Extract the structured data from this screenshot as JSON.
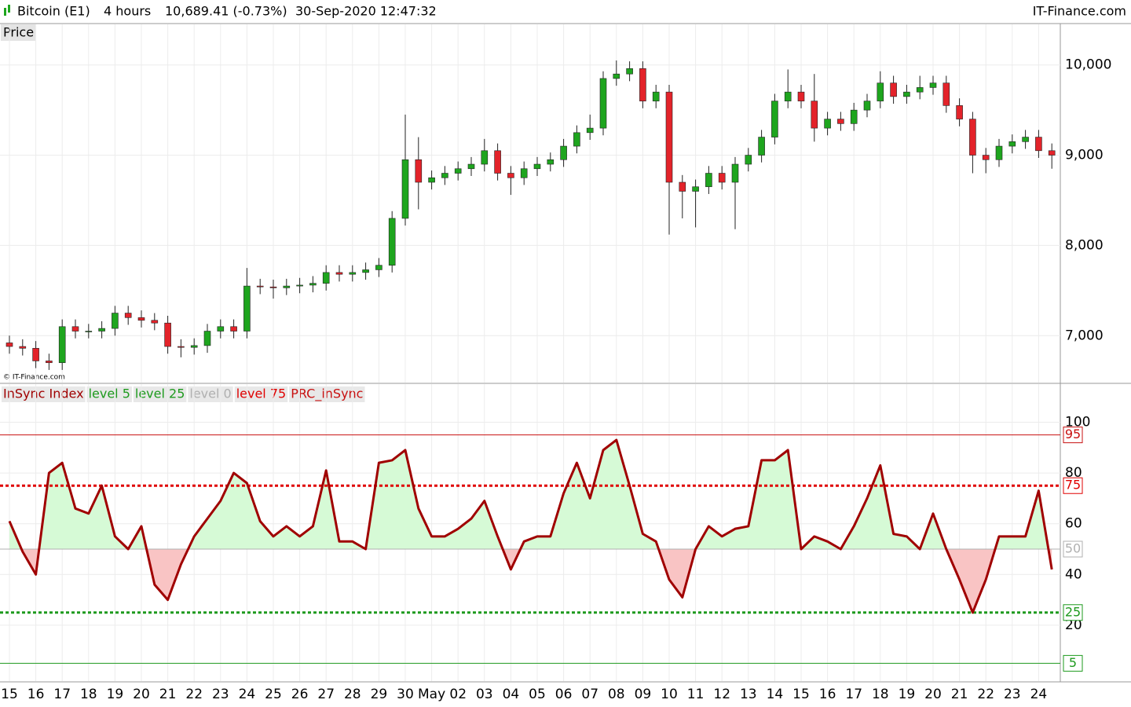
{
  "header": {
    "instrument": "Bitcoin (E1)",
    "timeframe": "4 hours",
    "quote": "10,689.41 (-0.73%)",
    "datetime": "30-Sep-2020 12:47:32",
    "brand": "IT-Finance.com"
  },
  "chart_data": [
    {
      "type": "candlestick",
      "title": "Price",
      "credit": "© IT-Finance.com",
      "up_color": "#1ea51e",
      "down_color": "#e3232a",
      "grid": true,
      "ylim": [
        6480,
        10450
      ],
      "yticks": [
        {
          "value": 7000,
          "label": "7,000"
        },
        {
          "value": 8000,
          "label": "8,000"
        },
        {
          "value": 9000,
          "label": "9,000"
        },
        {
          "value": 10000,
          "label": "10,000"
        }
      ],
      "open": [
        6920,
        6880,
        6860,
        6720,
        6700,
        7100,
        7050,
        7050,
        7080,
        7250,
        7200,
        7170,
        7140,
        6880,
        6870,
        6890,
        7050,
        7100,
        7050,
        7550,
        7540,
        7530,
        7550,
        7560,
        7580,
        7700,
        7680,
        7700,
        7730,
        7780,
        8300,
        8950,
        8700,
        8750,
        8800,
        8850,
        8900,
        9050,
        8800,
        8750,
        8850,
        8900,
        8950,
        9100,
        9250,
        9300,
        9850,
        9900,
        9960,
        9600,
        9700,
        8700,
        8600,
        8650,
        8800,
        8700,
        8900,
        9000,
        9200,
        9600,
        9700,
        9600,
        9300,
        9400,
        9350,
        9500,
        9600,
        9800,
        9650,
        9700,
        9750,
        9800,
        9550,
        9400,
        9000,
        8950,
        9100,
        9150,
        9200,
        9050
      ],
      "high": [
        7000,
        6960,
        6940,
        6800,
        7180,
        7180,
        7130,
        7160,
        7330,
        7330,
        7280,
        7250,
        7220,
        6960,
        6970,
        7130,
        7180,
        7180,
        7750,
        7630,
        7620,
        7630,
        7640,
        7660,
        7780,
        7780,
        7780,
        7810,
        7860,
        8380,
        9450,
        9200,
        8830,
        8880,
        8930,
        8980,
        9180,
        9130,
        8880,
        8930,
        8980,
        9030,
        9180,
        9330,
        9450,
        9930,
        10050,
        10040,
        10040,
        9780,
        9780,
        8780,
        8730,
        8880,
        8880,
        8980,
        9080,
        9280,
        9680,
        9950,
        9780,
        9900,
        9480,
        9480,
        9580,
        9680,
        9930,
        9880,
        9780,
        9880,
        9880,
        9880,
        9630,
        9480,
        9080,
        9180,
        9230,
        9280,
        9280,
        9130
      ],
      "low": [
        6800,
        6780,
        6640,
        6620,
        6620,
        6970,
        6970,
        6970,
        7000,
        7120,
        7090,
        7060,
        6800,
        6760,
        6790,
        6810,
        6970,
        6970,
        6970,
        7460,
        7410,
        7450,
        7470,
        7480,
        7500,
        7600,
        7600,
        7620,
        7650,
        7700,
        8220,
        8400,
        8620,
        8670,
        8720,
        8770,
        8820,
        8720,
        8560,
        8670,
        8770,
        8820,
        8870,
        9020,
        9170,
        9220,
        9770,
        9820,
        9520,
        9520,
        8120,
        8300,
        8200,
        8570,
        8620,
        8180,
        8820,
        8920,
        9120,
        9520,
        9520,
        9150,
        9220,
        9270,
        9270,
        9420,
        9520,
        9570,
        9570,
        9620,
        9670,
        9470,
        9320,
        8800,
        8800,
        8870,
        9020,
        9070,
        8970,
        8850
      ],
      "close": [
        6880,
        6860,
        6720,
        6700,
        7100,
        7050,
        7050,
        7080,
        7250,
        7200,
        7170,
        7140,
        6880,
        6870,
        6890,
        7050,
        7100,
        7050,
        7550,
        7540,
        7530,
        7550,
        7560,
        7580,
        7700,
        7680,
        7700,
        7730,
        7780,
        8300,
        8950,
        8700,
        8750,
        8800,
        8850,
        8900,
        9050,
        8800,
        8750,
        8850,
        8900,
        8950,
        9100,
        9250,
        9300,
        9850,
        9900,
        9960,
        9600,
        9700,
        8700,
        8600,
        8650,
        8800,
        8700,
        8900,
        9000,
        9200,
        9600,
        9700,
        9600,
        9300,
        9400,
        9350,
        9500,
        9600,
        9800,
        9650,
        9700,
        9750,
        9800,
        9550,
        9400,
        9000,
        8950,
        9100,
        9150,
        9200,
        9050,
        9000
      ]
    },
    {
      "type": "line",
      "grid": true,
      "ylim": [
        -2,
        115
      ],
      "yticks": [
        20,
        40,
        60,
        80,
        100
      ],
      "categories": [
        "15",
        null,
        "16",
        null,
        "17",
        null,
        "18",
        null,
        "19",
        null,
        "20",
        null,
        "21",
        null,
        "22",
        null,
        "23",
        null,
        "24",
        null,
        "25",
        null,
        "26",
        null,
        "27",
        null,
        "28",
        null,
        "29",
        null,
        "30",
        null,
        "May",
        null,
        "02",
        null,
        "03",
        null,
        "04",
        null,
        "05",
        null,
        "06",
        null,
        "07",
        null,
        "08",
        null,
        "09",
        null,
        "10",
        null,
        "11",
        null,
        "12",
        null,
        "13",
        null,
        "14",
        null,
        "15",
        null,
        "16",
        null,
        "17",
        null,
        "18",
        null,
        "19",
        null,
        "20",
        null,
        "21",
        null,
        "22",
        null,
        "23",
        null,
        "24",
        null
      ],
      "series": [
        {
          "name": "InSync Index",
          "color": "#a00000",
          "values": [
            61,
            49,
            40,
            80,
            84,
            66,
            64,
            75,
            55,
            50,
            59,
            36,
            30,
            44,
            55,
            62,
            69,
            80,
            76,
            61,
            55,
            59,
            55,
            59,
            81,
            53,
            53,
            50,
            84,
            85,
            89,
            66,
            55,
            55,
            58,
            62,
            69,
            55,
            42,
            53,
            55,
            55,
            72,
            84,
            70,
            89,
            93,
            75,
            56,
            53,
            38,
            31,
            50,
            59,
            55,
            58,
            59,
            85,
            85,
            89,
            50,
            55,
            53,
            50,
            59,
            70,
            83,
            56,
            55,
            50,
            64,
            50,
            38,
            25,
            38,
            55,
            55,
            55,
            73,
            42
          ]
        }
      ],
      "fill_above_color": "#d6fad6",
      "fill_below_color": "#f9c4c4",
      "fill_base": 50,
      "levels": [
        {
          "name": "level 5",
          "value": 5,
          "color": "#1e9a1e",
          "style": "solid"
        },
        {
          "name": "level 25",
          "value": 25,
          "color": "#1e9a1e",
          "style": "dotted"
        },
        {
          "name": "level 0",
          "value": 50,
          "color": "#b0b0b0",
          "style": "solid"
        },
        {
          "name": "level 75",
          "value": 75,
          "color": "#e00000",
          "style": "dotted"
        },
        {
          "name": "PRC_inSync",
          "value": 95,
          "color": "#c81010",
          "style": "solid"
        }
      ]
    }
  ]
}
